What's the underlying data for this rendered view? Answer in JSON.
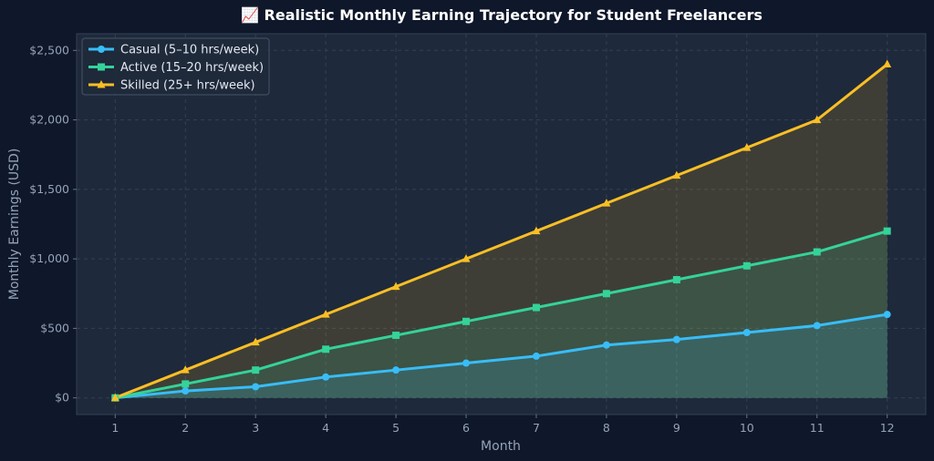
{
  "chart_data": {
    "type": "area",
    "title": "📈 Realistic Monthly Earning Trajectory for Student Freelancers",
    "xlabel": "Month",
    "ylabel": "Monthly Earnings (USD)",
    "x": [
      1,
      2,
      3,
      4,
      5,
      6,
      7,
      8,
      9,
      10,
      11,
      12
    ],
    "xlim": [
      0.45,
      12.55
    ],
    "ylim": [
      -120,
      2620
    ],
    "yticks": [
      0,
      500,
      1000,
      1500,
      2000,
      2500
    ],
    "ytick_labels": [
      "$0",
      "$500",
      "$1,000",
      "$1,500",
      "$2,000",
      "$2,500"
    ],
    "grid": true,
    "legend_position": "top-left",
    "series": [
      {
        "name": "Casual (5–10 hrs/week)",
        "color": "#38bdf8",
        "marker": "circle",
        "values": [
          0,
          50,
          80,
          150,
          200,
          250,
          300,
          380,
          420,
          470,
          520,
          600
        ]
      },
      {
        "name": "Active (15–20 hrs/week)",
        "color": "#34d399",
        "marker": "square",
        "values": [
          0,
          100,
          200,
          350,
          450,
          550,
          650,
          750,
          850,
          950,
          1050,
          1200
        ]
      },
      {
        "name": "Skilled (25+ hrs/week)",
        "color": "#fbbf24",
        "marker": "triangle",
        "values": [
          0,
          200,
          400,
          600,
          800,
          1000,
          1200,
          1400,
          1600,
          1800,
          2000,
          2400
        ]
      }
    ],
    "colors": {
      "background": "#0f172a",
      "plot_background": "#1e293b",
      "grid": "#334155",
      "text": "#94a3b8"
    }
  }
}
